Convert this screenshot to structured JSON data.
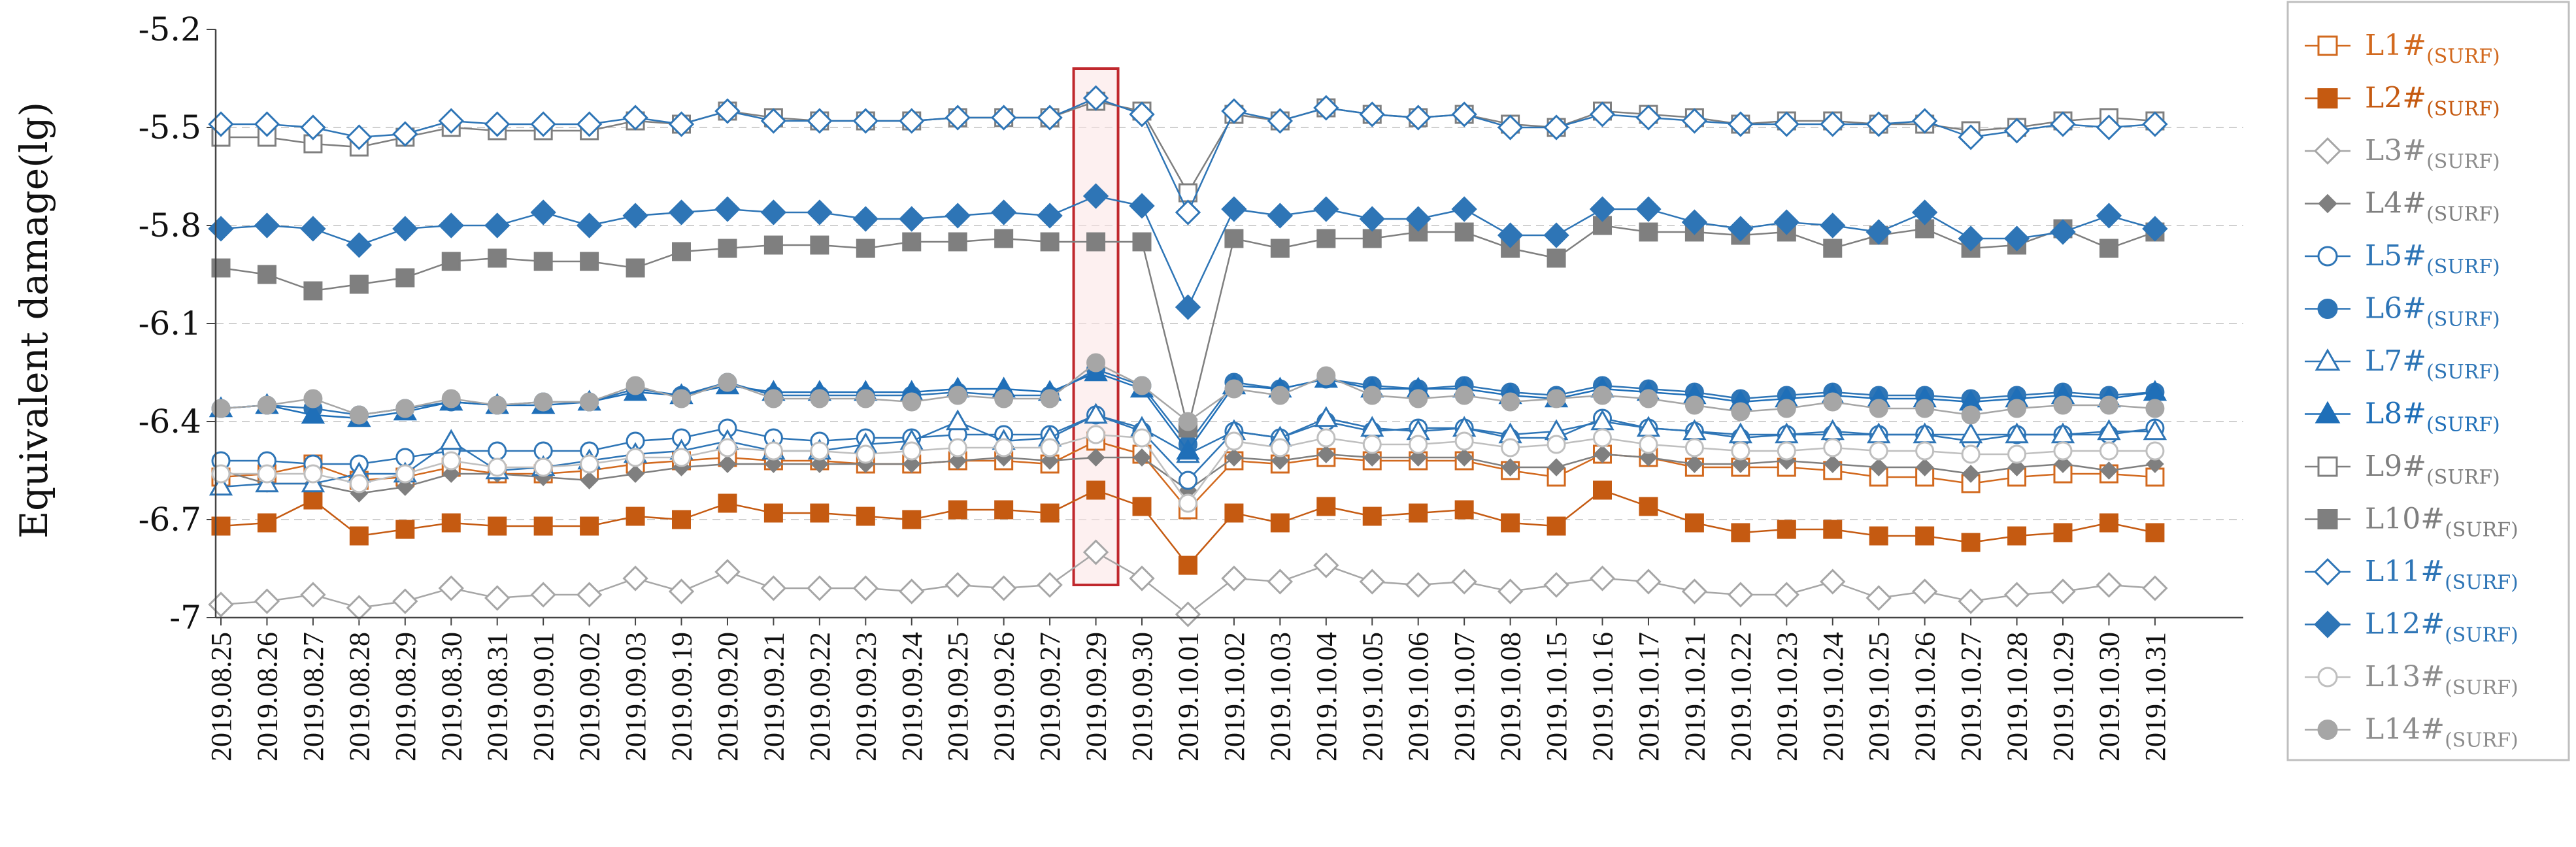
{
  "chart_data": {
    "type": "line",
    "title": "",
    "xlabel": "",
    "ylabel": "Equivalent damage(lg)",
    "ylim": [
      -7.0,
      -5.2
    ],
    "yticks": [
      -5.2,
      -5.5,
      -5.8,
      -6.1,
      -6.4,
      -6.7,
      -7.0
    ],
    "ytick_labels": [
      "-5.2",
      "-5.5",
      "-5.8",
      "-6.1",
      "-6.4",
      "-6.7",
      "-7"
    ],
    "grid": "horizontal-dashed",
    "legend_position": "right",
    "highlight": {
      "category": "2019.09.29",
      "color": "#c0282d"
    },
    "categories": [
      "2019.08.25",
      "2019.08.26",
      "2019.08.27",
      "2019.08.28",
      "2019.08.29",
      "2019.08.30",
      "2019.08.31",
      "2019.09.01",
      "2019.09.02",
      "2019.09.03",
      "2019.09.19",
      "2019.09.20",
      "2019.09.21",
      "2019.09.22",
      "2019.09.23",
      "2019.09.24",
      "2019.09.25",
      "2019.09.26",
      "2019.09.27",
      "2019.09.29",
      "2019.09.30",
      "2019.10.01",
      "2019.10.02",
      "2019.10.03",
      "2019.10.04",
      "2019.10.05",
      "2019.10.06",
      "2019.10.07",
      "2019.10.08",
      "2019.10.15",
      "2019.10.16",
      "2019.10.17",
      "2019.10.21",
      "2019.10.22",
      "2019.10.23",
      "2019.10.24",
      "2019.10.25",
      "2019.10.26",
      "2019.10.27",
      "2019.10.28",
      "2019.10.29",
      "2019.10.30",
      "2019.10.31"
    ],
    "series": [
      {
        "name": "L1#",
        "sub": "(SURF)",
        "color": "#d2691e",
        "marker": "square-open",
        "line_width": 2.5,
        "values": [
          -6.57,
          -6.56,
          -6.53,
          -6.58,
          -6.57,
          -6.54,
          -6.56,
          -6.56,
          -6.55,
          -6.53,
          -6.52,
          -6.51,
          -6.52,
          -6.52,
          -6.53,
          -6.53,
          -6.52,
          -6.52,
          -6.53,
          -6.46,
          -6.5,
          -6.67,
          -6.52,
          -6.53,
          -6.51,
          -6.52,
          -6.52,
          -6.52,
          -6.55,
          -6.57,
          -6.5,
          -6.51,
          -6.54,
          -6.54,
          -6.54,
          -6.55,
          -6.57,
          -6.57,
          -6.59,
          -6.57,
          -6.56,
          -6.56,
          -6.57
        ]
      },
      {
        "name": "L2#",
        "sub": "(SURF)",
        "color": "#c55a11",
        "marker": "square",
        "line_width": 2.5,
        "values": [
          -6.72,
          -6.71,
          -6.64,
          -6.75,
          -6.73,
          -6.71,
          -6.72,
          -6.72,
          -6.72,
          -6.69,
          -6.7,
          -6.65,
          -6.68,
          -6.68,
          -6.69,
          -6.7,
          -6.67,
          -6.67,
          -6.68,
          -6.61,
          -6.66,
          -6.84,
          -6.68,
          -6.71,
          -6.66,
          -6.69,
          -6.68,
          -6.67,
          -6.71,
          -6.72,
          -6.61,
          -6.66,
          -6.71,
          -6.74,
          -6.73,
          -6.73,
          -6.75,
          -6.75,
          -6.77,
          -6.75,
          -6.74,
          -6.71,
          -6.74
        ]
      },
      {
        "name": "L3#",
        "sub": "(SURF)",
        "color": "#a6a6a6",
        "marker": "diamond-open",
        "line_width": 2.5,
        "values": [
          -6.96,
          -6.95,
          -6.93,
          -6.97,
          -6.95,
          -6.91,
          -6.94,
          -6.93,
          -6.93,
          -6.88,
          -6.92,
          -6.86,
          -6.91,
          -6.91,
          -6.91,
          -6.92,
          -6.9,
          -6.91,
          -6.9,
          -6.8,
          -6.88,
          -6.99,
          -6.88,
          -6.89,
          -6.84,
          -6.89,
          -6.9,
          -6.89,
          -6.92,
          -6.9,
          -6.88,
          -6.89,
          -6.92,
          -6.93,
          -6.93,
          -6.89,
          -6.94,
          -6.92,
          -6.95,
          -6.93,
          -6.92,
          -6.9,
          -6.91
        ]
      },
      {
        "name": "L4#",
        "sub": "(SURF)",
        "color": "#7f7f7f",
        "marker": "diamond-small",
        "line_width": 2.5,
        "values": [
          -6.55,
          -6.59,
          -6.59,
          -6.62,
          -6.6,
          -6.56,
          -6.56,
          -6.57,
          -6.58,
          -6.56,
          -6.54,
          -6.53,
          -6.53,
          -6.53,
          -6.53,
          -6.53,
          -6.52,
          -6.51,
          -6.52,
          -6.51,
          -6.51,
          -6.61,
          -6.51,
          -6.52,
          -6.5,
          -6.51,
          -6.51,
          -6.51,
          -6.54,
          -6.54,
          -6.5,
          -6.51,
          -6.53,
          -6.53,
          -6.52,
          -6.53,
          -6.54,
          -6.54,
          -6.56,
          -6.54,
          -6.53,
          -6.55,
          -6.53
        ]
      },
      {
        "name": "L5#",
        "sub": "(SURF)",
        "color": "#2e75b6",
        "marker": "circle-open",
        "line_width": 2.5,
        "values": [
          -6.52,
          -6.52,
          -6.53,
          -6.53,
          -6.51,
          -6.49,
          -6.49,
          -6.49,
          -6.49,
          -6.46,
          -6.45,
          -6.42,
          -6.45,
          -6.46,
          -6.45,
          -6.45,
          -6.44,
          -6.44,
          -6.44,
          -6.38,
          -6.43,
          -6.58,
          -6.43,
          -6.45,
          -6.4,
          -6.43,
          -6.42,
          -6.42,
          -6.45,
          -6.45,
          -6.39,
          -6.42,
          -6.43,
          -6.45,
          -6.44,
          -6.44,
          -6.44,
          -6.44,
          -6.46,
          -6.44,
          -6.44,
          -6.44,
          -6.42
        ]
      },
      {
        "name": "L6#",
        "sub": "(SURF)",
        "color": "#2e75b6",
        "marker": "circle",
        "line_width": 2.5,
        "values": [
          -6.36,
          -6.35,
          -6.36,
          -6.38,
          -6.36,
          -6.34,
          -6.35,
          -6.34,
          -6.34,
          -6.3,
          -6.32,
          -6.28,
          -6.32,
          -6.32,
          -6.32,
          -6.32,
          -6.31,
          -6.32,
          -6.32,
          -6.24,
          -6.29,
          -6.47,
          -6.28,
          -6.3,
          -6.27,
          -6.29,
          -6.3,
          -6.29,
          -6.31,
          -6.32,
          -6.29,
          -6.3,
          -6.31,
          -6.33,
          -6.32,
          -6.31,
          -6.32,
          -6.32,
          -6.33,
          -6.32,
          -6.31,
          -6.32,
          -6.31
        ]
      },
      {
        "name": "L7#",
        "sub": "(SURF)",
        "color": "#2e75b6",
        "marker": "triangle-open",
        "line_width": 2.5,
        "values": [
          -6.6,
          -6.59,
          -6.59,
          -6.56,
          -6.56,
          -6.46,
          -6.55,
          -6.54,
          -6.52,
          -6.5,
          -6.49,
          -6.46,
          -6.49,
          -6.49,
          -6.47,
          -6.46,
          -6.4,
          -6.46,
          -6.45,
          -6.38,
          -6.42,
          -6.5,
          -6.43,
          -6.45,
          -6.39,
          -6.42,
          -6.43,
          -6.42,
          -6.44,
          -6.43,
          -6.4,
          -6.42,
          -6.43,
          -6.44,
          -6.44,
          -6.43,
          -6.44,
          -6.44,
          -6.44,
          -6.44,
          -6.44,
          -6.43,
          -6.43
        ]
      },
      {
        "name": "L8#",
        "sub": "(SURF)",
        "color": "#1f6fb8",
        "marker": "triangle",
        "line_width": 2.5,
        "values": [
          -6.36,
          -6.35,
          -6.38,
          -6.39,
          -6.37,
          -6.34,
          -6.35,
          -6.35,
          -6.34,
          -6.31,
          -6.32,
          -6.29,
          -6.31,
          -6.31,
          -6.31,
          -6.31,
          -6.3,
          -6.3,
          -6.31,
          -6.25,
          -6.3,
          -6.49,
          -6.29,
          -6.3,
          -6.27,
          -6.3,
          -6.3,
          -6.3,
          -6.32,
          -6.33,
          -6.3,
          -6.31,
          -6.32,
          -6.34,
          -6.33,
          -6.32,
          -6.33,
          -6.33,
          -6.34,
          -6.33,
          -6.32,
          -6.33,
          -6.31
        ]
      },
      {
        "name": "L9#",
        "sub": "(SURF)",
        "color": "#7f7f7f",
        "marker": "square-open",
        "line_width": 2.5,
        "values": [
          -5.53,
          -5.53,
          -5.55,
          -5.56,
          -5.53,
          -5.5,
          -5.51,
          -5.51,
          -5.51,
          -5.48,
          -5.49,
          -5.45,
          -5.47,
          -5.48,
          -5.48,
          -5.48,
          -5.47,
          -5.47,
          -5.47,
          -5.42,
          -5.45,
          -5.7,
          -5.46,
          -5.48,
          -5.44,
          -5.46,
          -5.47,
          -5.46,
          -5.49,
          -5.5,
          -5.45,
          -5.46,
          -5.47,
          -5.49,
          -5.48,
          -5.48,
          -5.49,
          -5.49,
          -5.51,
          -5.5,
          -5.48,
          -5.47,
          -5.48
        ]
      },
      {
        "name": "L10#",
        "sub": "(SURF)",
        "color": "#7f7f7f",
        "marker": "square",
        "line_width": 2.5,
        "values": [
          -5.93,
          -5.95,
          -6.0,
          -5.98,
          -5.96,
          -5.91,
          -5.9,
          -5.91,
          -5.91,
          -5.93,
          -5.88,
          -5.87,
          -5.86,
          -5.86,
          -5.87,
          -5.85,
          -5.85,
          -5.84,
          -5.85,
          -5.85,
          -5.85,
          -6.42,
          -5.84,
          -5.87,
          -5.84,
          -5.84,
          -5.82,
          -5.82,
          -5.87,
          -5.9,
          -5.8,
          -5.82,
          -5.82,
          -5.83,
          -5.82,
          -5.87,
          -5.83,
          -5.81,
          -5.87,
          -5.86,
          -5.81,
          -5.87,
          -5.82
        ]
      },
      {
        "name": "L11#",
        "sub": "(SURF)",
        "color": "#2e75b6",
        "marker": "diamond-open",
        "line_width": 2.5,
        "values": [
          -5.49,
          -5.49,
          -5.5,
          -5.53,
          -5.52,
          -5.48,
          -5.49,
          -5.49,
          -5.49,
          -5.47,
          -5.49,
          -5.45,
          -5.48,
          -5.48,
          -5.48,
          -5.48,
          -5.47,
          -5.47,
          -5.47,
          -5.41,
          -5.46,
          -5.76,
          -5.45,
          -5.48,
          -5.44,
          -5.46,
          -5.47,
          -5.46,
          -5.5,
          -5.5,
          -5.46,
          -5.47,
          -5.48,
          -5.49,
          -5.49,
          -5.49,
          -5.49,
          -5.48,
          -5.53,
          -5.51,
          -5.49,
          -5.5,
          -5.49
        ]
      },
      {
        "name": "L12#",
        "sub": "(SURF)",
        "color": "#2e75b6",
        "marker": "diamond",
        "line_width": 2.5,
        "values": [
          -5.81,
          -5.8,
          -5.81,
          -5.86,
          -5.81,
          -5.8,
          -5.8,
          -5.76,
          -5.8,
          -5.77,
          -5.76,
          -5.75,
          -5.76,
          -5.76,
          -5.78,
          -5.78,
          -5.77,
          -5.76,
          -5.77,
          -5.71,
          -5.74,
          -6.05,
          -5.75,
          -5.77,
          -5.75,
          -5.78,
          -5.78,
          -5.75,
          -5.83,
          -5.83,
          -5.75,
          -5.75,
          -5.79,
          -5.81,
          -5.79,
          -5.8,
          -5.82,
          -5.76,
          -5.84,
          -5.84,
          -5.82,
          -5.77,
          -5.81
        ]
      },
      {
        "name": "L13#",
        "sub": "(SURF)",
        "color": "#bfbfbf",
        "marker": "circle-open",
        "line_width": 2.5,
        "values": [
          -6.56,
          -6.56,
          -6.56,
          -6.59,
          -6.56,
          -6.52,
          -6.54,
          -6.54,
          -6.53,
          -6.51,
          -6.51,
          -6.48,
          -6.49,
          -6.49,
          -6.5,
          -6.49,
          -6.48,
          -6.48,
          -6.48,
          -6.44,
          -6.45,
          -6.65,
          -6.46,
          -6.48,
          -6.45,
          -6.47,
          -6.47,
          -6.46,
          -6.48,
          -6.47,
          -6.45,
          -6.47,
          -6.48,
          -6.49,
          -6.49,
          -6.48,
          -6.49,
          -6.49,
          -6.5,
          -6.5,
          -6.49,
          -6.49,
          -6.49
        ]
      },
      {
        "name": "L14#",
        "sub": "(SURF)",
        "color": "#a6a6a6",
        "marker": "circle",
        "line_width": 2.5,
        "values": [
          -6.36,
          -6.35,
          -6.33,
          -6.38,
          -6.36,
          -6.33,
          -6.35,
          -6.34,
          -6.34,
          -6.29,
          -6.33,
          -6.28,
          -6.33,
          -6.33,
          -6.33,
          -6.34,
          -6.32,
          -6.33,
          -6.33,
          -6.22,
          -6.29,
          -6.4,
          -6.3,
          -6.32,
          -6.26,
          -6.32,
          -6.33,
          -6.32,
          -6.34,
          -6.33,
          -6.32,
          -6.33,
          -6.35,
          -6.37,
          -6.36,
          -6.34,
          -6.36,
          -6.36,
          -6.38,
          -6.36,
          -6.35,
          -6.35,
          -6.36
        ]
      }
    ]
  }
}
